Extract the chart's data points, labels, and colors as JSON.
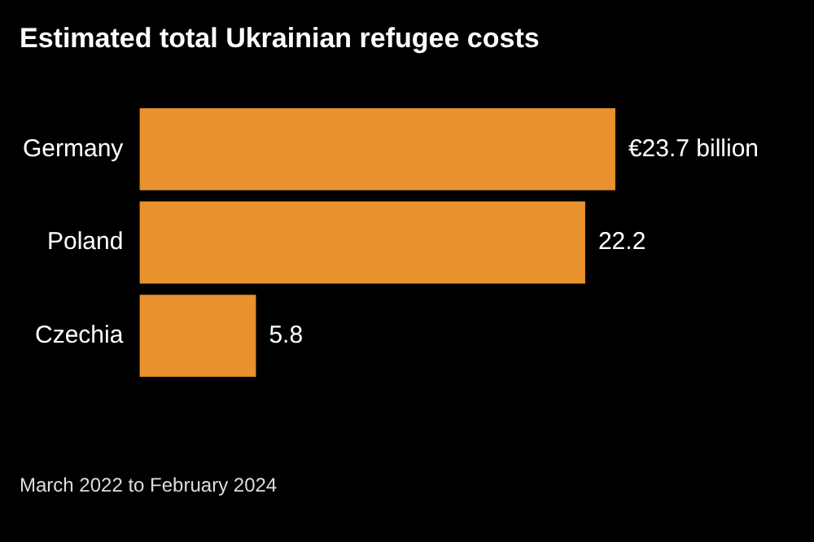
{
  "chart_data": {
    "type": "bar",
    "orientation": "horizontal",
    "title": "Estimated total Ukrainian refugee costs",
    "categories": [
      "Germany",
      "Poland",
      "Czechia"
    ],
    "values": [
      23.7,
      22.2,
      5.8
    ],
    "value_labels": [
      "€23.7 billion",
      "22.2",
      "5.8"
    ],
    "color": "#e8912d",
    "annotations": [
      "March 2022 to February 2024"
    ]
  }
}
